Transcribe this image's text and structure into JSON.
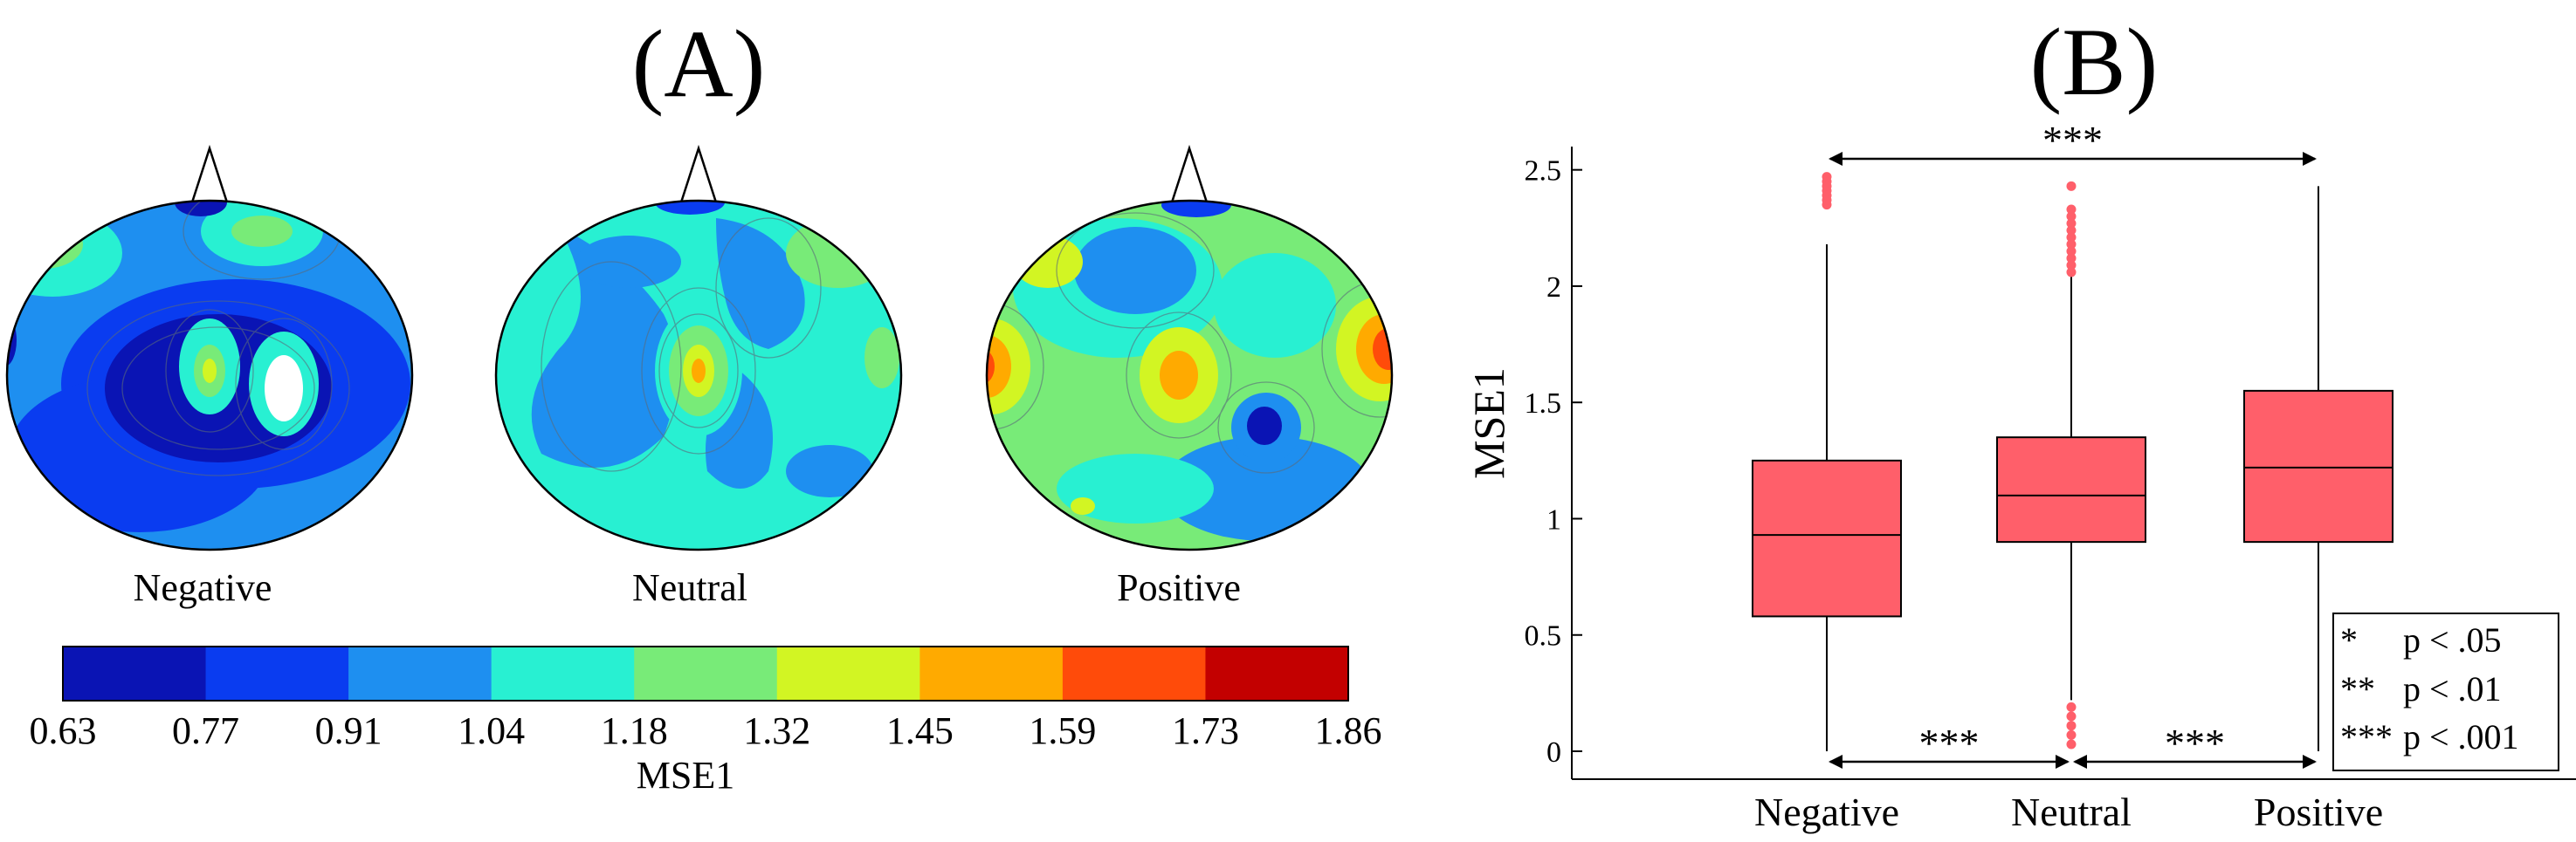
{
  "panel_a": {
    "label": "(A)",
    "topomaps": [
      {
        "name": "Negative"
      },
      {
        "name": "Neutral"
      },
      {
        "name": "Positive"
      }
    ],
    "colorbar": {
      "label": "MSE1",
      "ticks": [
        "0.63",
        "0.77",
        "0.91",
        "1.04",
        "1.18",
        "1.32",
        "1.45",
        "1.59",
        "1.73",
        "1.86"
      ],
      "colors": [
        "#0a14b4",
        "#0a3cf0",
        "#1e8ff0",
        "#28f0d2",
        "#78eb78",
        "#d2f523",
        "#ffaa00",
        "#ff4b0a",
        "#c30000"
      ]
    }
  },
  "chart_data": {
    "type": "box",
    "panel_label": "(B)",
    "title": "",
    "xlabel": "",
    "ylabel": "MSE1",
    "ylim": [
      -0.12,
      2.6
    ],
    "yticks": [
      "0",
      "0.5",
      "1",
      "1.5",
      "2",
      "2.5"
    ],
    "categories": [
      "Negative",
      "Neutral",
      "Positive"
    ],
    "box_color": "#ff5f6a",
    "boxes": [
      {
        "name": "Negative",
        "whisker_low": 0.0,
        "q1": 0.58,
        "median": 0.93,
        "q3": 1.25,
        "whisker_high": 2.18,
        "outliers": [
          2.35,
          2.37,
          2.39,
          2.41,
          2.43,
          2.45,
          2.47
        ]
      },
      {
        "name": "Neutral",
        "whisker_low": 0.22,
        "q1": 0.9,
        "median": 1.1,
        "q3": 1.35,
        "whisker_high": 2.04,
        "outliers": [
          0.03,
          0.07,
          0.11,
          0.15,
          0.19,
          2.06,
          2.09,
          2.12,
          2.15,
          2.18,
          2.21,
          2.24,
          2.27,
          2.3,
          2.33,
          2.43
        ]
      },
      {
        "name": "Positive",
        "whisker_low": 0.0,
        "q1": 0.9,
        "median": 1.22,
        "q3": 1.55,
        "whisker_high": 2.43,
        "outliers": []
      }
    ],
    "significance": [
      {
        "from": "Negative",
        "to": "Positive",
        "label": "***",
        "position": "top"
      },
      {
        "from": "Negative",
        "to": "Neutral",
        "label": "***",
        "position": "bottom"
      },
      {
        "from": "Neutral",
        "to": "Positive",
        "label": "***",
        "position": "bottom"
      }
    ],
    "legend": {
      "position": "bottom-right",
      "entries": [
        {
          "symbol": "*",
          "text": "p < .05"
        },
        {
          "symbol": "**",
          "text": "p < .01"
        },
        {
          "symbol": "***",
          "text": "p < .001"
        }
      ]
    }
  }
}
